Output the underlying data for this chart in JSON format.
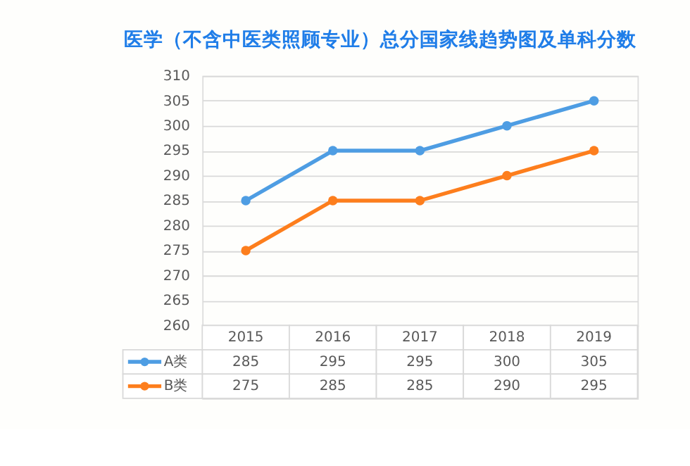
{
  "chart_data": {
    "type": "line",
    "title": "医学（不含中医类照顾专业）总分国家线趋势图及单科分数",
    "categories": [
      "2015",
      "2016",
      "2017",
      "2018",
      "2019"
    ],
    "series": [
      {
        "name": "A类",
        "color": "#4e9de3",
        "values": [
          285,
          295,
          295,
          300,
          305
        ]
      },
      {
        "name": "B类",
        "color": "#fd7e1d",
        "values": [
          275,
          285,
          285,
          290,
          295
        ]
      }
    ],
    "ylim": [
      260,
      310
    ],
    "yticks": [
      260,
      265,
      270,
      275,
      280,
      285,
      290,
      295,
      300,
      305,
      310
    ],
    "grid": "y",
    "marker": "circle",
    "data_labels": true,
    "legend": "bottom"
  }
}
